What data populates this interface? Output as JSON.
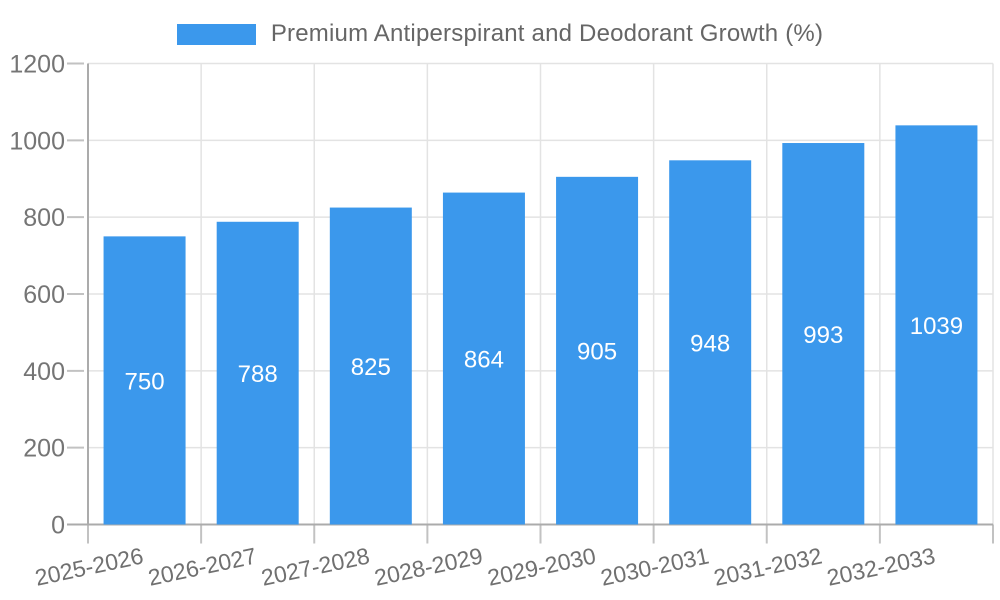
{
  "legend": {
    "series_label": "Premium Antiperspirant and Deodorant Growth (%)"
  },
  "chart_data": {
    "type": "bar",
    "title": "Premium Antiperspirant and Deodorant Growth (%)",
    "categories": [
      "2025-2026",
      "2026-2027",
      "2027-2028",
      "2028-2029",
      "2029-2030",
      "2030-2031",
      "2031-2032",
      "2032-2033"
    ],
    "values": [
      750,
      788,
      825,
      864,
      905,
      948,
      993,
      1039
    ],
    "xlabel": "",
    "ylabel": "",
    "ylim": [
      0,
      1200
    ],
    "yticks": [
      0,
      200,
      400,
      600,
      800,
      1000,
      1200
    ],
    "grid": true,
    "legend_position": "top",
    "value_label_position": "inside-middle",
    "colors": {
      "bar": "#3b98ec",
      "value_label": "#ffffff",
      "axis_text": "#757575",
      "x_axis_text": "#707070",
      "title_text": "#666666",
      "gridline": "#e3e3e3",
      "axis_line": "#ababab",
      "tick": "#c2c2c2"
    }
  }
}
